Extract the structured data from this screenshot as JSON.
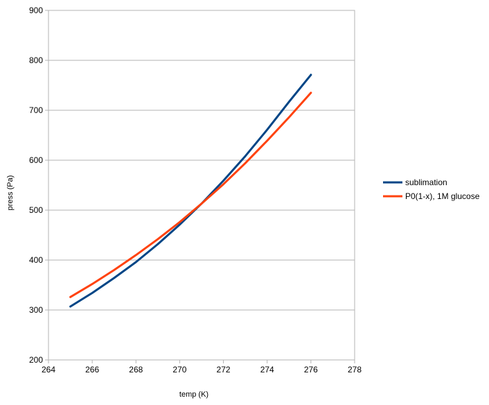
{
  "chart_data": {
    "type": "line",
    "title": "",
    "xlabel": "temp (K)",
    "ylabel": "press (Pa)",
    "xlim": [
      264,
      278
    ],
    "ylim": [
      200,
      900
    ],
    "x_ticks": [
      "264",
      "266",
      "268",
      "270",
      "272",
      "274",
      "276",
      "278"
    ],
    "y_ticks": [
      "200",
      "300",
      "400",
      "500",
      "600",
      "700",
      "800",
      "900"
    ],
    "grid": "horizontal",
    "legend_position": "right",
    "x": [
      265,
      266,
      267,
      268,
      269,
      270,
      271,
      272,
      273,
      274,
      275,
      276
    ],
    "series": [
      {
        "name": "sublimation",
        "color": "#004586",
        "values": [
          307,
          334,
          364,
          396,
          432,
          471,
          513,
          559,
          608,
          661,
          717,
          771
        ]
      },
      {
        "name": "P0(1-x), 1M glucose",
        "color": "#ff420e",
        "values": [
          326,
          352,
          380,
          410,
          442,
          476,
          513,
          552,
          594,
          639,
          686,
          735
        ]
      }
    ]
  }
}
